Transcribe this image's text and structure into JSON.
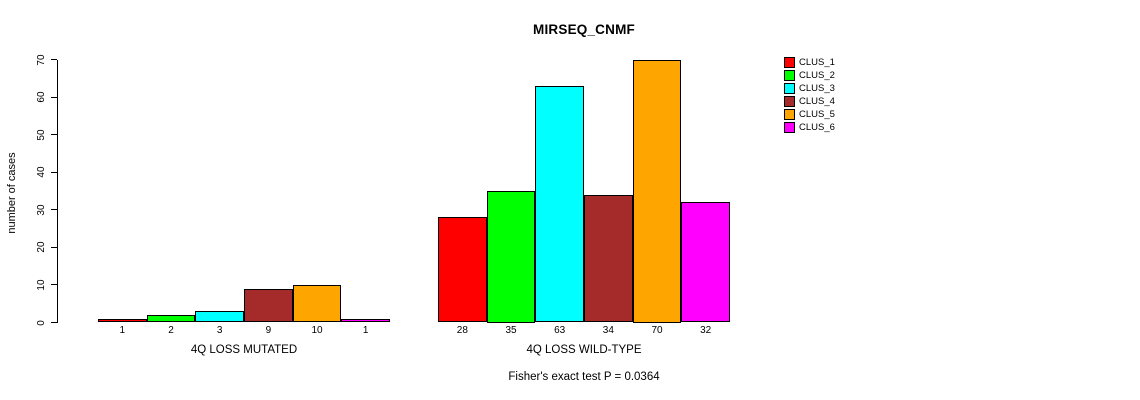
{
  "chart_data": {
    "type": "bar",
    "title": "MIRSEQ_CNMF",
    "ylabel": "number of cases",
    "xlabel": "",
    "ylim": [
      0,
      70
    ],
    "yticks": [
      0,
      10,
      20,
      30,
      40,
      50,
      60,
      70
    ],
    "grid": false,
    "legend_position": "right",
    "categories": [
      "CLUS_1",
      "CLUS_2",
      "CLUS_3",
      "CLUS_4",
      "CLUS_5",
      "CLUS_6"
    ],
    "series_colors": [
      "#FF0000",
      "#00FF00",
      "#00FFFF",
      "#A52A2A",
      "#FFA500",
      "#FF00FF"
    ],
    "groups": [
      {
        "label": "4Q LOSS MUTATED",
        "values": [
          1,
          2,
          3,
          9,
          10,
          1
        ],
        "bar_labels": [
          "1",
          "2",
          "3",
          "9",
          "10",
          "1"
        ]
      },
      {
        "label": "4Q LOSS WILD-TYPE",
        "values": [
          28,
          35,
          63,
          34,
          70,
          32
        ],
        "bar_labels": [
          "28",
          "35",
          "63",
          "34",
          "70",
          "32"
        ]
      }
    ],
    "legend": {
      "entries": [
        {
          "label": "CLUS_1",
          "color": "#FF0000"
        },
        {
          "label": "CLUS_2",
          "color": "#00FF00"
        },
        {
          "label": "CLUS_3",
          "color": "#00FFFF"
        },
        {
          "label": "CLUS_4",
          "color": "#A52A2A"
        },
        {
          "label": "CLUS_5",
          "color": "#FFA500"
        },
        {
          "label": "CLUS_6",
          "color": "#FF00FF"
        }
      ]
    },
    "annotation": "Fisher's exact test P = 0.0364"
  }
}
